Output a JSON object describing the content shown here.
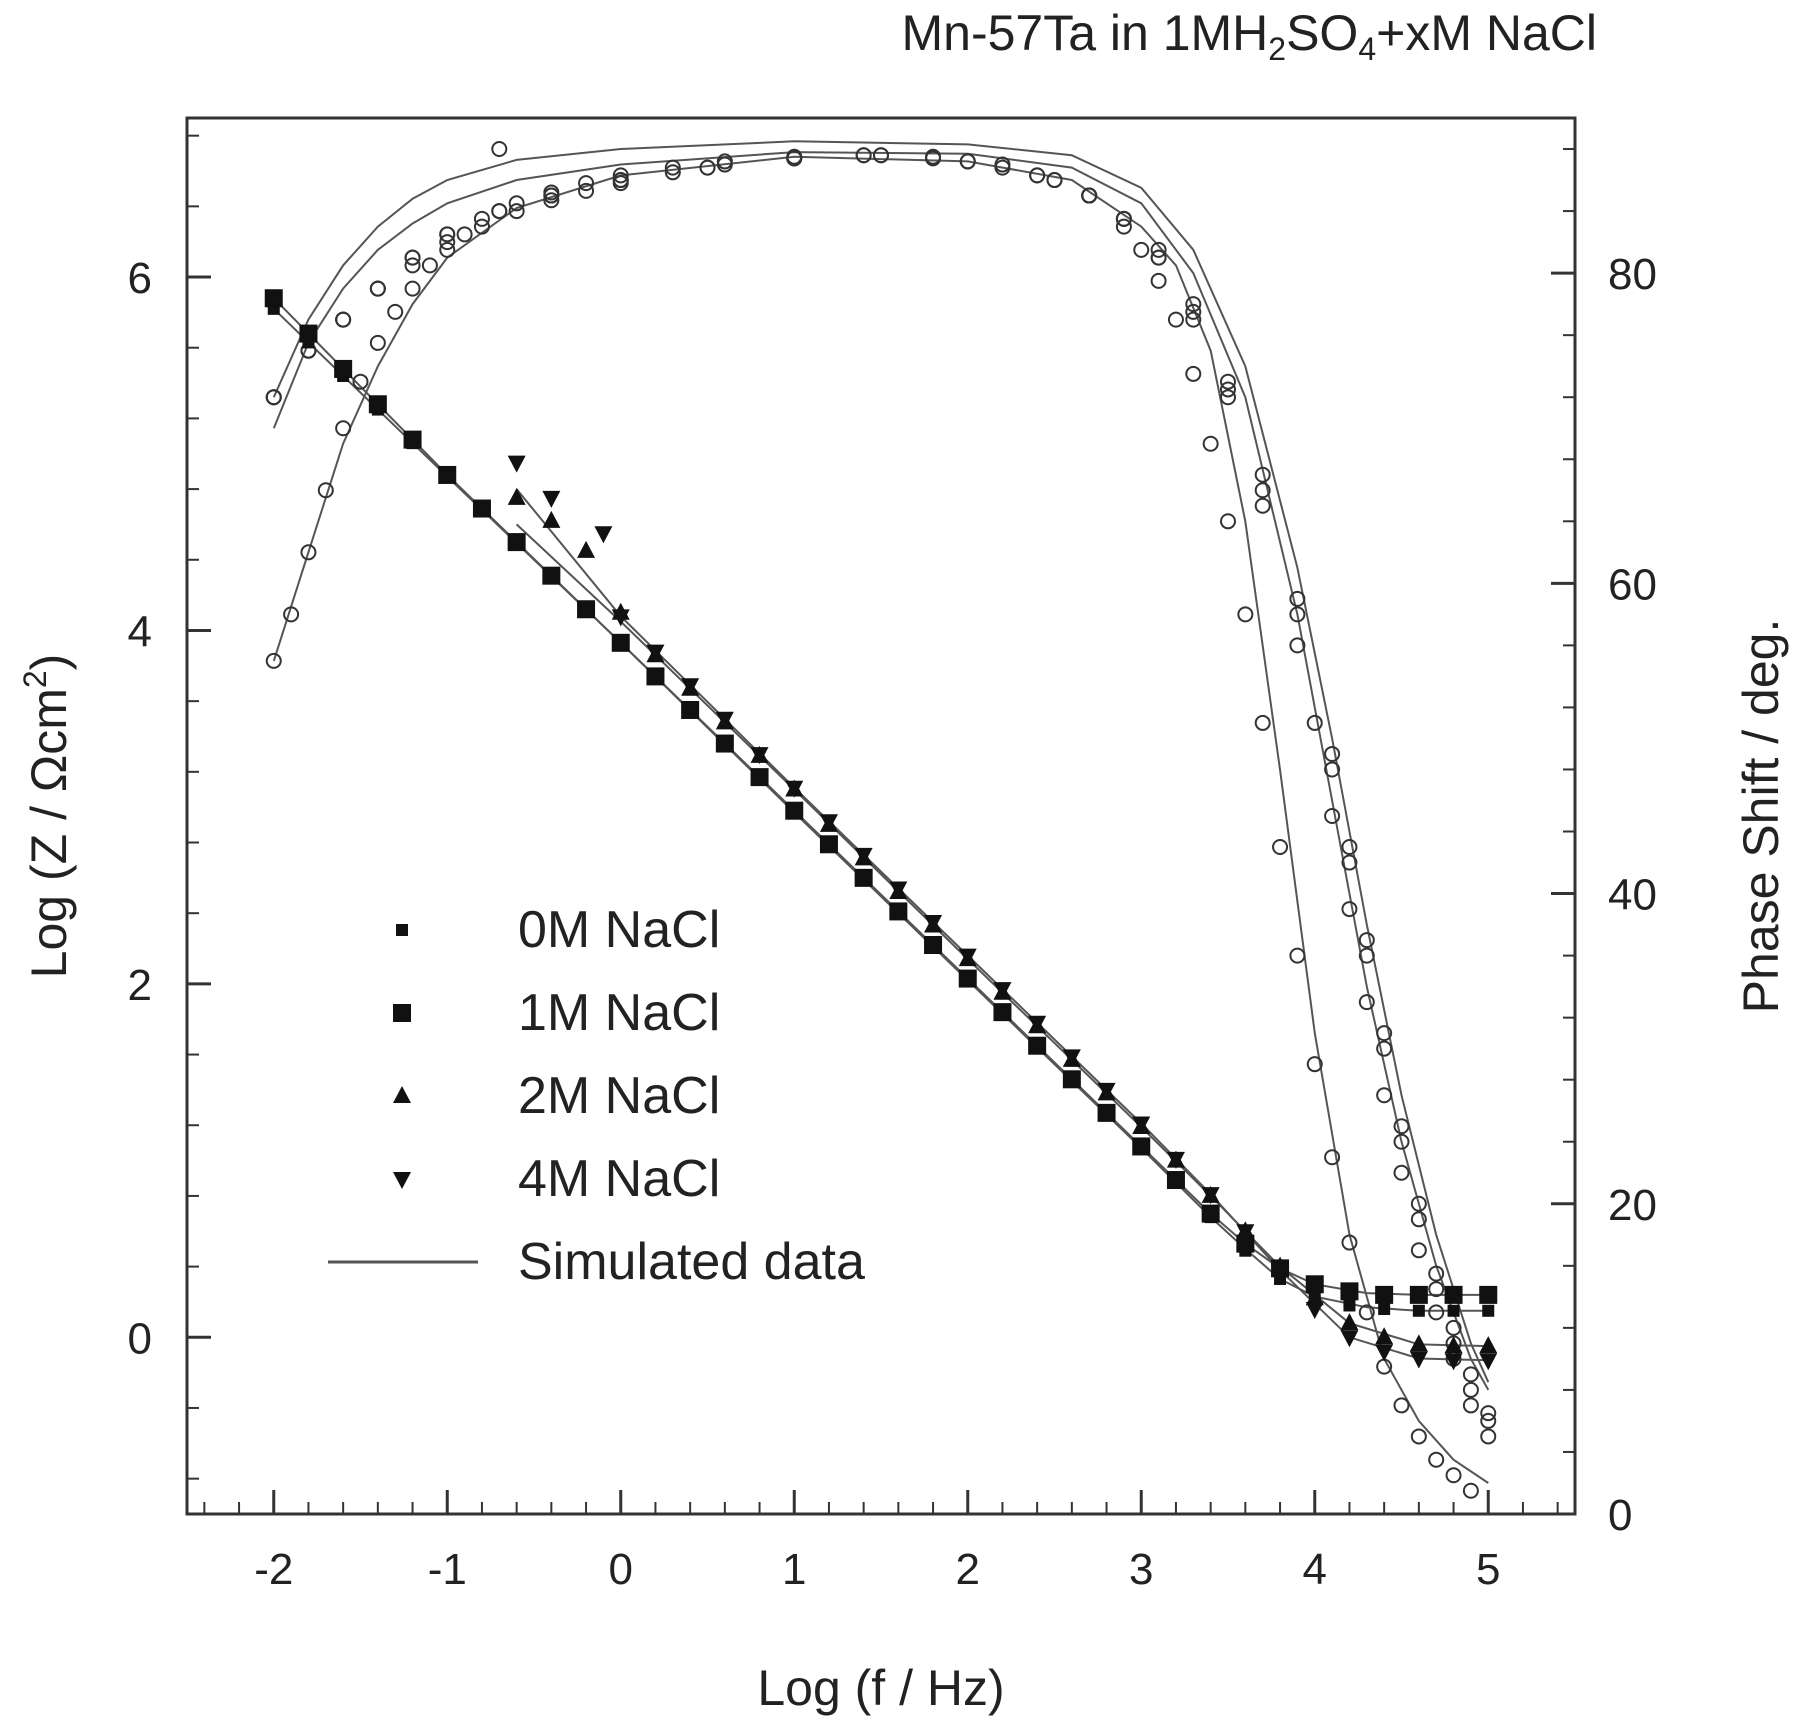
{
  "chart_data": {
    "type": "scatter",
    "title": {
      "parts": [
        {
          "text": "Mn-57Ta in 1MH",
          "sub": false
        },
        {
          "text": "2",
          "sub": true
        },
        {
          "text": "SO",
          "sub": false
        },
        {
          "text": "4",
          "sub": true
        },
        {
          "text": "+xM NaCl",
          "sub": false
        }
      ]
    },
    "xlabel": "Log (f / Hz)",
    "ylabel": {
      "text": "Log (Z / Ωcm",
      "sup": "2",
      "end": ")"
    },
    "y2label": "Phase Shift / deg.",
    "xlim": [
      -2.5,
      5.5
    ],
    "ylim": [
      -1.0,
      6.9
    ],
    "y2lim": [
      0,
      90
    ],
    "xticks": [
      -2,
      -1,
      0,
      1,
      2,
      3,
      4,
      5
    ],
    "xtick_labels": [
      "-2",
      "-1",
      "0",
      "1",
      "2",
      "3",
      "4",
      "5"
    ],
    "yticks": [
      0,
      2,
      4,
      6
    ],
    "ytick_labels": [
      "0",
      "2",
      "4",
      "6"
    ],
    "y2ticks": [
      0,
      20,
      40,
      60,
      80
    ],
    "y2tick_labels": [
      "0",
      "20",
      "40",
      "60",
      "80"
    ],
    "legend_position": "lower-left",
    "legend": [
      {
        "label": "0M NaCl",
        "marker": "square-small"
      },
      {
        "label": "1M NaCl",
        "marker": "square"
      },
      {
        "label": "2M NaCl",
        "marker": "triangle-up"
      },
      {
        "label": "4M NaCl",
        "marker": "triangle-down"
      },
      {
        "label": "Simulated data",
        "marker": "line"
      }
    ],
    "impedance_series": [
      {
        "name": "0M NaCl",
        "marker": "square-small",
        "x": [
          -2.0,
          -1.8,
          -1.6,
          -1.4,
          -1.2,
          -1.0,
          -0.8,
          -0.6,
          -0.4,
          -0.2,
          0.0,
          0.2,
          0.4,
          0.6,
          0.8,
          1.0,
          1.2,
          1.4,
          1.6,
          1.8,
          2.0,
          2.2,
          2.4,
          2.6,
          2.8,
          3.0,
          3.2,
          3.4,
          3.6,
          3.8,
          4.0,
          4.2,
          4.4,
          4.6,
          4.8,
          5.0
        ],
        "y": [
          5.82,
          5.63,
          5.44,
          5.25,
          5.06,
          4.87,
          4.68,
          4.5,
          4.31,
          4.12,
          3.93,
          3.74,
          3.55,
          3.36,
          3.17,
          2.97,
          2.78,
          2.59,
          2.4,
          2.21,
          2.02,
          1.83,
          1.64,
          1.45,
          1.26,
          1.07,
          0.88,
          0.68,
          0.49,
          0.33,
          0.23,
          0.18,
          0.16,
          0.15,
          0.15,
          0.15
        ]
      },
      {
        "name": "1M NaCl",
        "marker": "square",
        "x": [
          -2.0,
          -1.8,
          -1.6,
          -1.4,
          -1.2,
          -1.0,
          -0.8,
          -0.6,
          -0.4,
          -0.2,
          0.0,
          0.2,
          0.4,
          0.6,
          0.8,
          1.0,
          1.2,
          1.4,
          1.6,
          1.8,
          2.0,
          2.2,
          2.4,
          2.6,
          2.8,
          3.0,
          3.2,
          3.4,
          3.6,
          3.8,
          4.0,
          4.2,
          4.4,
          4.6,
          4.8,
          5.0
        ],
        "y": [
          5.88,
          5.68,
          5.48,
          5.28,
          5.08,
          4.88,
          4.69,
          4.5,
          4.31,
          4.12,
          3.93,
          3.74,
          3.55,
          3.36,
          3.17,
          2.98,
          2.79,
          2.6,
          2.41,
          2.22,
          2.03,
          1.84,
          1.65,
          1.46,
          1.27,
          1.08,
          0.89,
          0.7,
          0.53,
          0.39,
          0.3,
          0.26,
          0.24,
          0.24,
          0.24,
          0.24
        ]
      },
      {
        "name": "2M NaCl",
        "marker": "triangle-up",
        "x": [
          -0.6,
          -0.4,
          -0.2,
          0.0,
          0.2,
          0.4,
          0.6,
          0.8,
          1.0,
          1.2,
          1.4,
          1.6,
          1.8,
          2.0,
          2.2,
          2.4,
          2.6,
          2.8,
          3.0,
          3.2,
          3.4,
          3.6,
          3.8,
          4.0,
          4.2,
          4.4,
          4.6,
          4.8,
          5.0
        ],
        "y": [
          4.75,
          4.62,
          4.45,
          4.1,
          3.86,
          3.67,
          3.48,
          3.29,
          3.1,
          2.9,
          2.71,
          2.52,
          2.33,
          2.14,
          1.95,
          1.76,
          1.57,
          1.38,
          1.19,
          1.0,
          0.8,
          0.6,
          0.4,
          0.22,
          0.08,
          0.0,
          -0.04,
          -0.05,
          -0.05
        ]
      },
      {
        "name": "4M NaCl",
        "marker": "triangle-down",
        "x": [
          -0.6,
          -0.4,
          -0.1,
          0.0,
          0.2,
          0.4,
          0.6,
          0.8,
          1.0,
          1.2,
          1.4,
          1.6,
          1.8,
          2.0,
          2.2,
          2.4,
          2.6,
          2.8,
          3.0,
          3.2,
          3.4,
          3.6,
          3.8,
          4.0,
          4.2,
          4.4,
          4.6,
          4.8,
          5.0
        ],
        "y": [
          4.95,
          4.75,
          4.55,
          4.08,
          3.88,
          3.69,
          3.5,
          3.3,
          3.11,
          2.92,
          2.73,
          2.54,
          2.35,
          2.16,
          1.97,
          1.78,
          1.59,
          1.4,
          1.21,
          1.01,
          0.81,
          0.6,
          0.38,
          0.16,
          0.0,
          -0.08,
          -0.12,
          -0.13,
          -0.13
        ]
      }
    ],
    "phase_series": [
      {
        "name": "0M NaCl",
        "x": [
          -2.0,
          -1.9,
          -1.8,
          -1.7,
          -1.6,
          -1.5,
          -1.4,
          -1.3,
          -1.2,
          -1.1,
          -1.0,
          -0.9,
          -0.8,
          -0.7,
          -0.6,
          -0.4,
          -0.2,
          0.0,
          0.3,
          0.6,
          1.0,
          1.4,
          1.8,
          2.2,
          2.5,
          2.7,
          2.9,
          3.0,
          3.1,
          3.2,
          3.3,
          3.4,
          3.5,
          3.6,
          3.7,
          3.8,
          3.9,
          4.0,
          4.1,
          4.2,
          4.3,
          4.4,
          4.5,
          4.6,
          4.7,
          4.8,
          4.9
        ],
        "y": [
          55,
          58,
          62,
          66,
          70,
          73,
          75.5,
          77.5,
          79,
          80.5,
          81.5,
          82.5,
          83.5,
          84,
          84.5,
          85.2,
          85.8,
          86.3,
          86.8,
          87.2,
          87.5,
          87.6,
          87.4,
          86.8,
          86,
          85,
          83,
          81.5,
          79.5,
          77,
          73.5,
          69,
          64,
          58,
          51,
          43,
          36,
          29,
          23,
          17.5,
          13,
          9.5,
          7,
          5,
          3.5,
          2.5,
          1.5
        ]
      },
      {
        "name": "1M NaCl",
        "x": [
          -2.0,
          -1.8,
          -1.6,
          -1.4,
          -1.2,
          -1.0,
          -0.8,
          -0.6,
          -0.4,
          -0.2,
          0.0,
          0.3,
          0.6,
          1.0,
          1.4,
          1.8,
          2.2,
          2.5,
          2.7,
          2.9,
          3.1,
          3.3,
          3.5,
          3.7,
          3.9,
          4.0,
          4.1,
          4.2,
          4.3,
          4.4,
          4.5,
          4.6,
          4.7,
          4.8,
          4.9,
          5.0
        ],
        "y": [
          72,
          75,
          77,
          79,
          80.5,
          82,
          83,
          84,
          84.7,
          85.3,
          85.8,
          86.5,
          87,
          87.4,
          87.6,
          87.5,
          87,
          86,
          85,
          83.5,
          81,
          77,
          72,
          65,
          56,
          51,
          45,
          39,
          33,
          27,
          22,
          17,
          13,
          10,
          7,
          5
        ]
      },
      {
        "name": "2M NaCl",
        "x": [
          -2.0,
          -1.8,
          -1.6,
          -1.4,
          -1.2,
          -1.0,
          -0.7,
          -0.4,
          0.0,
          0.5,
          1.0,
          1.5,
          2.0,
          2.4,
          2.7,
          2.9,
          3.1,
          3.3,
          3.5,
          3.7,
          3.9,
          4.1,
          4.2,
          4.3,
          4.4,
          4.5,
          4.6,
          4.7,
          4.8,
          4.9,
          5.0
        ],
        "y": [
          72,
          75,
          77,
          79,
          81,
          82.5,
          88,
          85,
          86,
          86.8,
          87.4,
          87.6,
          87.2,
          86.3,
          85,
          83.5,
          81,
          77.5,
          72.5,
          66,
          58,
          48,
          42,
          36,
          30,
          24,
          19,
          14.5,
          11,
          8,
          6
        ]
      },
      {
        "name": "4M NaCl",
        "x": [
          -2.0,
          -1.8,
          -1.6,
          -1.4,
          -1.2,
          -1.0,
          -0.7,
          -0.4,
          0.0,
          0.5,
          1.0,
          1.5,
          2.0,
          2.4,
          2.7,
          2.9,
          3.1,
          3.3,
          3.5,
          3.7,
          3.9,
          4.1,
          4.2,
          4.3,
          4.4,
          4.5,
          4.6,
          4.7,
          4.8,
          4.9,
          5.0
        ],
        "y": [
          72,
          75,
          77,
          79,
          81,
          82.5,
          84,
          85,
          86,
          86.8,
          87.4,
          87.6,
          87.2,
          86.3,
          85,
          83.5,
          81.5,
          78,
          73,
          67,
          59,
          49,
          43,
          37,
          31,
          25,
          20,
          15.5,
          12,
          9,
          6.5
        ]
      }
    ],
    "simulated_impedance": [
      {
        "name": "simulated-impedance-1",
        "x": [
          -2.0,
          -1.0,
          0.0,
          1.0,
          2.0,
          3.0,
          3.4,
          3.6,
          3.8,
          4.0,
          4.3,
          4.6,
          5.0
        ],
        "y": [
          5.82,
          4.87,
          3.93,
          2.97,
          2.02,
          1.07,
          0.68,
          0.5,
          0.33,
          0.23,
          0.17,
          0.15,
          0.15
        ]
      },
      {
        "name": "simulated-impedance-2",
        "x": [
          -2.0,
          -1.0,
          0.0,
          1.0,
          2.0,
          3.0,
          3.4,
          3.6,
          3.8,
          4.0,
          4.3,
          4.6,
          5.0
        ],
        "y": [
          5.88,
          4.88,
          3.93,
          2.98,
          2.03,
          1.08,
          0.7,
          0.53,
          0.39,
          0.3,
          0.25,
          0.24,
          0.24
        ]
      },
      {
        "name": "simulated-impedance-3",
        "x": [
          -0.6,
          0.0,
          1.0,
          2.0,
          3.0,
          3.4,
          3.8,
          4.2,
          4.6,
          5.0
        ],
        "y": [
          4.6,
          4.05,
          3.1,
          2.14,
          1.19,
          0.8,
          0.4,
          0.08,
          -0.04,
          -0.05
        ]
      },
      {
        "name": "simulated-impedance-4",
        "x": [
          -0.6,
          0.0,
          1.0,
          2.0,
          3.0,
          3.4,
          3.8,
          4.2,
          4.6,
          5.0
        ],
        "y": [
          4.8,
          4.08,
          3.11,
          2.16,
          1.21,
          0.81,
          0.38,
          0.0,
          -0.12,
          -0.13
        ]
      }
    ],
    "simulated_phase": [
      {
        "name": "simulated-phase-1",
        "x": [
          -2.0,
          -1.8,
          -1.6,
          -1.4,
          -1.2,
          -1.0,
          -0.6,
          0.0,
          1.0,
          2.0,
          2.6,
          3.0,
          3.2,
          3.4,
          3.6,
          3.8,
          4.0,
          4.2,
          4.4,
          4.6,
          4.8,
          5.0
        ],
        "y": [
          55,
          62,
          69,
          74,
          78,
          81,
          84.2,
          86.3,
          87.5,
          87.2,
          86,
          83,
          80.5,
          75,
          64,
          48,
          31,
          18,
          10,
          6,
          3.5,
          2
        ]
      },
      {
        "name": "simulated-phase-2",
        "x": [
          -2.0,
          -1.8,
          -1.6,
          -1.4,
          -1.2,
          -1.0,
          -0.6,
          0.0,
          1.0,
          2.0,
          2.6,
          3.0,
          3.3,
          3.6,
          3.9,
          4.1,
          4.3,
          4.5,
          4.7,
          4.9,
          5.0
        ],
        "y": [
          70,
          75.5,
          79,
          81.5,
          83.2,
          84.5,
          86,
          87,
          87.8,
          87.7,
          86.8,
          84.5,
          80,
          72,
          58,
          46,
          34,
          24,
          16,
          10,
          8
        ]
      },
      {
        "name": "simulated-phase-3",
        "x": [
          -2.0,
          -1.8,
          -1.6,
          -1.4,
          -1.2,
          -1.0,
          -0.6,
          0.0,
          1.0,
          2.0,
          2.6,
          3.0,
          3.3,
          3.6,
          3.9,
          4.1,
          4.3,
          4.5,
          4.7,
          4.9,
          5.0
        ],
        "y": [
          72,
          77,
          80.5,
          83,
          84.8,
          86,
          87.3,
          88,
          88.5,
          88.3,
          87.6,
          85.5,
          81.5,
          74,
          61,
          50,
          38,
          27,
          18,
          11,
          8.5
        ]
      }
    ]
  }
}
